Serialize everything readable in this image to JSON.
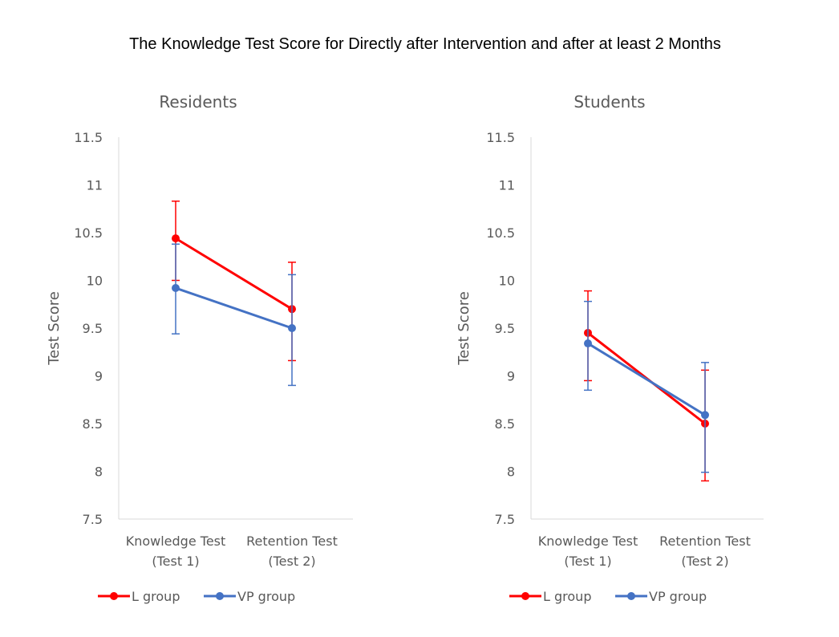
{
  "title": "The Knowledge Test Score for Directly after Intervention and after at least 2 Months",
  "colors": {
    "L group": "#ff0000",
    "VP group": "#4472c4",
    "axis": "#d9d9d9",
    "text": "#595959"
  },
  "chart_data": [
    {
      "type": "line",
      "title": "Residents",
      "ylabel": "Test Score",
      "xlabel": "",
      "categories": [
        [
          "Knowledge Test",
          "(Test 1)"
        ],
        [
          "Retention Test",
          "(Test 2)"
        ]
      ],
      "ylim": [
        7.5,
        11.5
      ],
      "yticks": [
        "11.5",
        "11",
        "10.5",
        "10",
        "9.5",
        "9",
        "8.5",
        "8",
        "7.5"
      ],
      "grid": false,
      "legend": "bottom",
      "series": [
        {
          "name": "L group",
          "values": [
            10.44,
            9.7
          ],
          "err_low": [
            10.0,
            9.16
          ],
          "err_high": [
            10.83,
            10.19
          ]
        },
        {
          "name": "VP group",
          "values": [
            9.92,
            9.5
          ],
          "err_low": [
            9.44,
            8.9
          ],
          "err_high": [
            10.38,
            10.06
          ]
        }
      ]
    },
    {
      "type": "line",
      "title": "Students",
      "ylabel": "Test Score",
      "xlabel": "",
      "categories": [
        [
          "Knowledge Test",
          "(Test 1)"
        ],
        [
          "Retention Test",
          "(Test 2)"
        ]
      ],
      "ylim": [
        7.5,
        11.5
      ],
      "yticks": [
        "11.5",
        "11",
        "10.5",
        "10",
        "9.5",
        "9",
        "8.5",
        "8",
        "7.5"
      ],
      "grid": false,
      "legend": "bottom",
      "series": [
        {
          "name": "L group",
          "values": [
            9.45,
            8.5
          ],
          "err_low": [
            8.95,
            7.9
          ],
          "err_high": [
            9.89,
            9.06
          ]
        },
        {
          "name": "VP group",
          "values": [
            9.34,
            8.59
          ],
          "err_low": [
            8.85,
            7.99
          ],
          "err_high": [
            9.78,
            9.14
          ]
        }
      ]
    }
  ]
}
